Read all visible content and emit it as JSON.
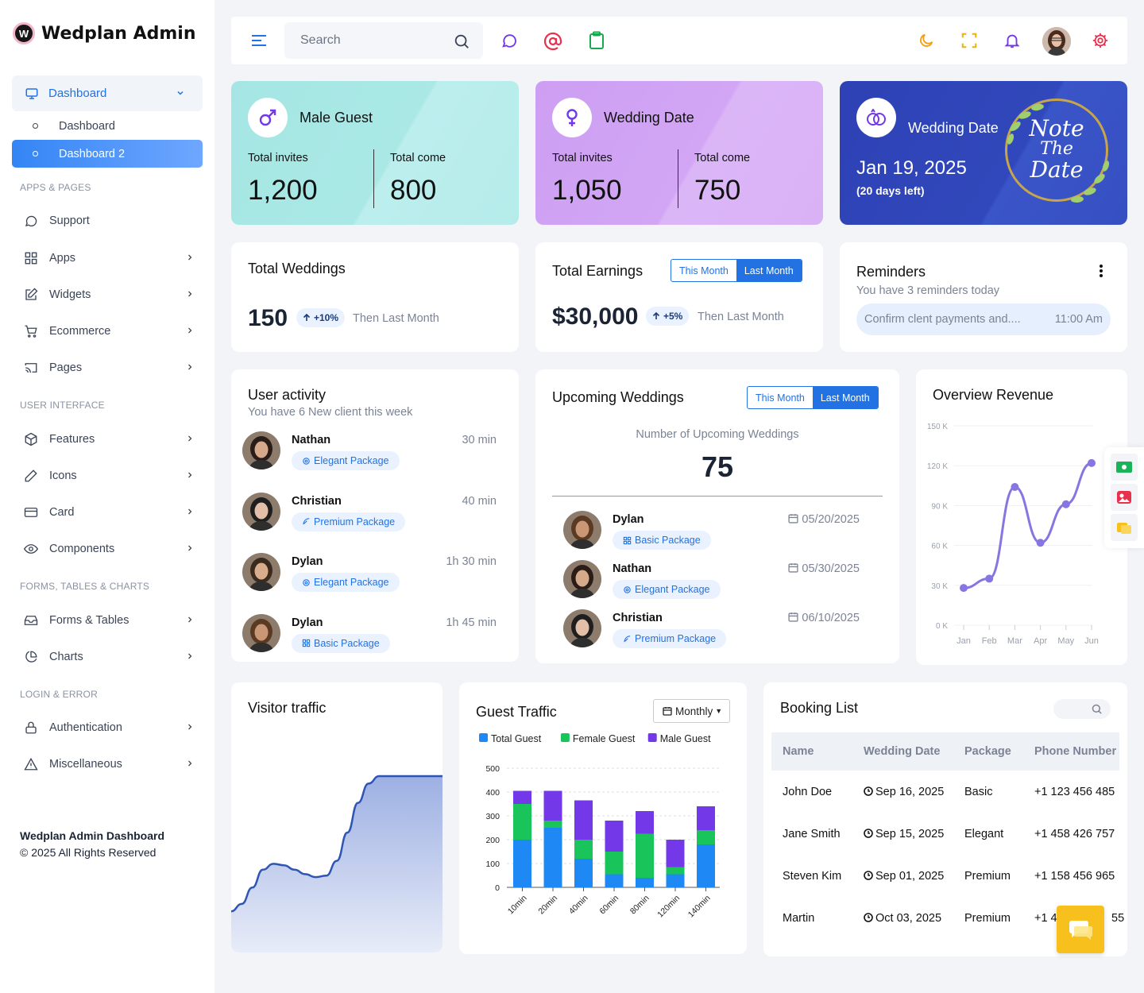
{
  "app": {
    "brand": "Wedplan Admin",
    "logo_letter": "W"
  },
  "sidebar": {
    "main": {
      "label": "Dashboard"
    },
    "subs": [
      {
        "label": "Dashboard"
      },
      {
        "label": "Dashboard 2"
      }
    ],
    "sections": [
      "APPS & PAGES",
      "USER INTERFACE",
      "FORMS, TABLES & CHARTS",
      "LOGIN & ERROR"
    ],
    "items": [
      {
        "label": "Support"
      },
      {
        "label": "Apps"
      },
      {
        "label": "Widgets"
      },
      {
        "label": "Ecommerce"
      },
      {
        "label": "Pages"
      },
      {
        "label": "Features"
      },
      {
        "label": "Icons"
      },
      {
        "label": "Card"
      },
      {
        "label": "Components"
      },
      {
        "label": "Forms & Tables"
      },
      {
        "label": "Charts"
      },
      {
        "label": "Authentication"
      },
      {
        "label": "Miscellaneous"
      }
    ],
    "footer": {
      "title": "Wedplan Admin Dashboard",
      "copyright": "© 2025 All Rights Reserved"
    }
  },
  "topbar": {
    "search_placeholder": "Search"
  },
  "stats": {
    "male": {
      "title": "Male Guest",
      "invites_label": "Total invites",
      "invites": "1,200",
      "come_label": "Total come",
      "come": "800"
    },
    "wedding": {
      "title": "Wedding Date",
      "invites_label": "Total invites",
      "invites": "1,050",
      "come_label": "Total come",
      "come": "750"
    },
    "date": {
      "title": "Wedding Date",
      "date": "Jan 19, 2025",
      "left": "(20 days left)",
      "stamp_line1": "Note",
      "stamp_line2": "The",
      "stamp_line3": "Date"
    }
  },
  "total_weddings": {
    "title": "Total Weddings",
    "value": "150",
    "change": "+10%",
    "note": "Then Last Month"
  },
  "total_earnings": {
    "title": "Total Earnings",
    "this_month": "This Month",
    "last_month": "Last Month",
    "value": "$30,000",
    "change": "+5%",
    "note": "Then Last Month"
  },
  "reminders": {
    "title": "Reminders",
    "subtitle": "You have 3 reminders today",
    "item": "Confirm clent payments and....",
    "time": "11:00 Am"
  },
  "user_activity": {
    "title": "User activity",
    "subtitle": "You have 6 New client this week",
    "items": [
      {
        "name": "Nathan",
        "package": "Elegant Package",
        "time": "30 min"
      },
      {
        "name": "Christian",
        "package": "Premium Package",
        "time": "40 min"
      },
      {
        "name": "Dylan",
        "package": "Elegant Package",
        "time": "1h 30 min"
      },
      {
        "name": "Dylan",
        "package": "Basic Package",
        "time": "1h 45 min"
      }
    ]
  },
  "upcoming": {
    "title": "Upcoming Weddings",
    "this_month": "This Month",
    "last_month": "Last Month",
    "label": "Number of Upcoming Weddings",
    "value": "75",
    "items": [
      {
        "name": "Dylan",
        "package": "Basic Package",
        "date": "05/20/2025"
      },
      {
        "name": "Nathan",
        "package": "Elegant Package",
        "date": "05/30/2025"
      },
      {
        "name": "Christian",
        "package": "Premium Package",
        "date": "06/10/2025"
      }
    ]
  },
  "revenue": {
    "title": "Overview Revenue"
  },
  "visitor": {
    "title": "Visitor traffic"
  },
  "guest_traffic": {
    "title": "Guest Traffic",
    "period": "Monthly"
  },
  "booking": {
    "title": "Booking List",
    "headers": [
      "Name",
      "Wedding Date",
      "Package",
      "Phone Number"
    ],
    "rows": [
      {
        "name": "John Doe",
        "date": "Sep 16, 2025",
        "package": "Basic",
        "phone": "+1 123 456 485"
      },
      {
        "name": "Jane Smith",
        "date": "Sep 15, 2025",
        "package": "Elegant",
        "phone": "+1 458 426 757"
      },
      {
        "name": "Steven Kim",
        "date": "Sep 01, 2025",
        "package": "Premium",
        "phone": "+1 158 456 965"
      },
      {
        "name": "Martin",
        "date": "Oct 03, 2025",
        "package": "Premium",
        "phone": "+1 4",
        "phone_tail": "55"
      }
    ]
  },
  "colors": {
    "accent": "#2272e4",
    "male_card": "#a5e6e4",
    "wedding_card": "#d0a3f3",
    "date_card": "#2f45b8",
    "total": "#1e88f5",
    "female": "#19c45a",
    "male": "#7338e8",
    "revenue_line": "#8576e1",
    "chat": "#f7c01c"
  },
  "chart_data": [
    {
      "type": "line",
      "title": "Overview Revenue",
      "categories": [
        "Jan",
        "Feb",
        "Mar",
        "Apr",
        "May",
        "Jun"
      ],
      "series": [
        {
          "values": [
            28000,
            35000,
            104000,
            62000,
            91000,
            122000
          ]
        }
      ],
      "y_ticks": [
        "0 K",
        "30 K",
        "60 K",
        "90 K",
        "120 K",
        "150 K"
      ],
      "ylim": [
        0,
        150000
      ]
    },
    {
      "type": "area",
      "title": "Visitor traffic",
      "x": [
        0,
        1,
        2,
        3,
        4,
        5,
        6,
        7,
        8,
        9,
        10,
        11,
        12,
        13,
        14,
        15,
        16,
        17,
        18,
        19,
        20
      ],
      "series": [
        {
          "values": [
            9,
            14,
            25,
            37,
            41,
            40,
            37,
            34,
            32,
            33,
            43,
            62,
            82,
            95,
            100,
            100,
            100,
            100,
            100,
            100,
            100
          ]
        }
      ],
      "ylim": [
        0,
        100
      ]
    },
    {
      "type": "bar",
      "title": "Guest Traffic",
      "stacked": true,
      "categories": [
        "10min",
        "20min",
        "40min",
        "60min",
        "80min",
        "120min",
        "140min"
      ],
      "series": [
        {
          "name": "Total Guest",
          "values": [
            200,
            250,
            120,
            55,
            40,
            55,
            180
          ]
        },
        {
          "name": "Female Guest",
          "values": [
            150,
            30,
            80,
            95,
            185,
            30,
            60
          ]
        },
        {
          "name": "Male Guest",
          "values": [
            55,
            125,
            165,
            130,
            95,
            115,
            100
          ]
        }
      ],
      "y_ticks": [
        "0",
        "100",
        "200",
        "300",
        "400",
        "500"
      ],
      "ylim": [
        0,
        500
      ]
    }
  ]
}
